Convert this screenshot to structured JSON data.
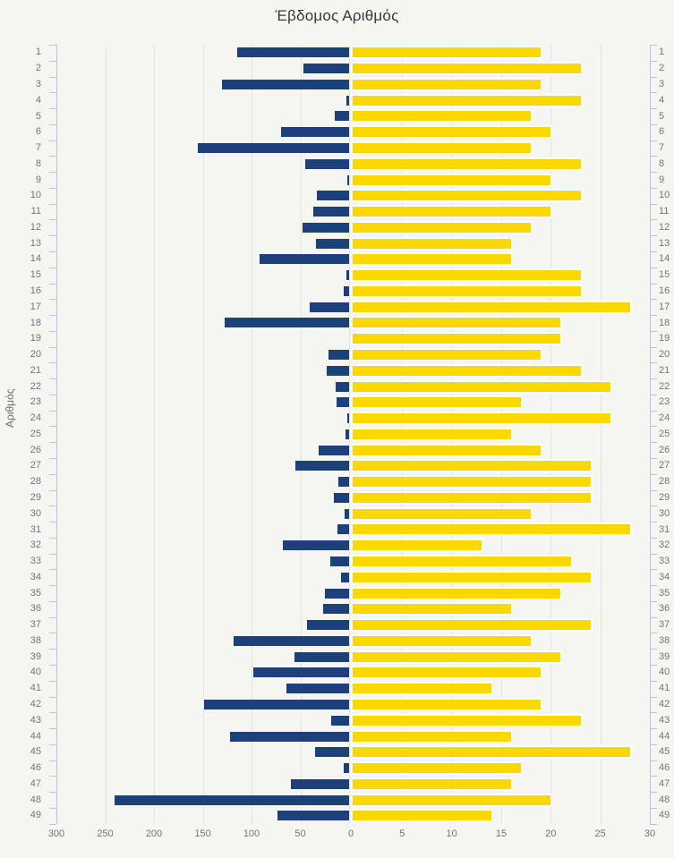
{
  "title": "Έβδομος Αριθμός",
  "y_axis_label": "Αριθμός",
  "colors": {
    "left_bar": "#1c4079",
    "right_bar": "#fbd900",
    "background": "#f5f5f2",
    "gridline": "#e4e4e0",
    "axis": "#bcc4d8",
    "label_text": "#74747e",
    "title_text": "#37383e"
  },
  "chart_data": {
    "type": "bar",
    "orientation": "horizontal-diverging",
    "title": "Έβδομος Αριθμός",
    "ylabel": "Αριθμός",
    "categories": [
      1,
      2,
      3,
      4,
      5,
      6,
      7,
      8,
      9,
      10,
      11,
      12,
      13,
      14,
      15,
      16,
      17,
      18,
      19,
      20,
      21,
      22,
      23,
      24,
      25,
      26,
      27,
      28,
      29,
      30,
      31,
      32,
      33,
      34,
      35,
      36,
      37,
      38,
      39,
      40,
      41,
      42,
      43,
      44,
      45,
      46,
      47,
      48,
      49
    ],
    "series": [
      {
        "name": "left-blue",
        "axis_max": 300,
        "values": [
          115,
          47,
          130,
          3,
          15,
          70,
          155,
          45,
          2,
          33,
          37,
          48,
          34,
          92,
          3,
          6,
          40,
          128,
          0,
          21,
          23,
          14,
          13,
          2,
          4,
          31,
          55,
          11,
          16,
          5,
          12,
          68,
          19,
          8,
          25,
          27,
          43,
          118,
          56,
          98,
          64,
          149,
          18,
          122,
          35,
          6,
          60,
          240,
          73
        ]
      },
      {
        "name": "right-yellow",
        "axis_max": 30,
        "values": [
          19,
          23,
          19,
          23,
          18,
          20,
          18,
          23,
          20,
          23,
          20,
          18,
          16,
          16,
          23,
          23,
          28,
          21,
          21,
          19,
          23,
          26,
          17,
          26,
          16,
          19,
          24,
          24,
          24,
          18,
          28,
          13,
          22,
          24,
          21,
          16,
          24,
          18,
          21,
          19,
          14,
          19,
          23,
          16,
          28,
          17,
          16,
          20,
          14
        ]
      }
    ],
    "left_axis_ticks": [
      300,
      250,
      200,
      150,
      100,
      50
    ],
    "zero_tick": 0,
    "right_axis_ticks": [
      5,
      10,
      15,
      20,
      25,
      30
    ],
    "grid": true,
    "legend": false
  }
}
